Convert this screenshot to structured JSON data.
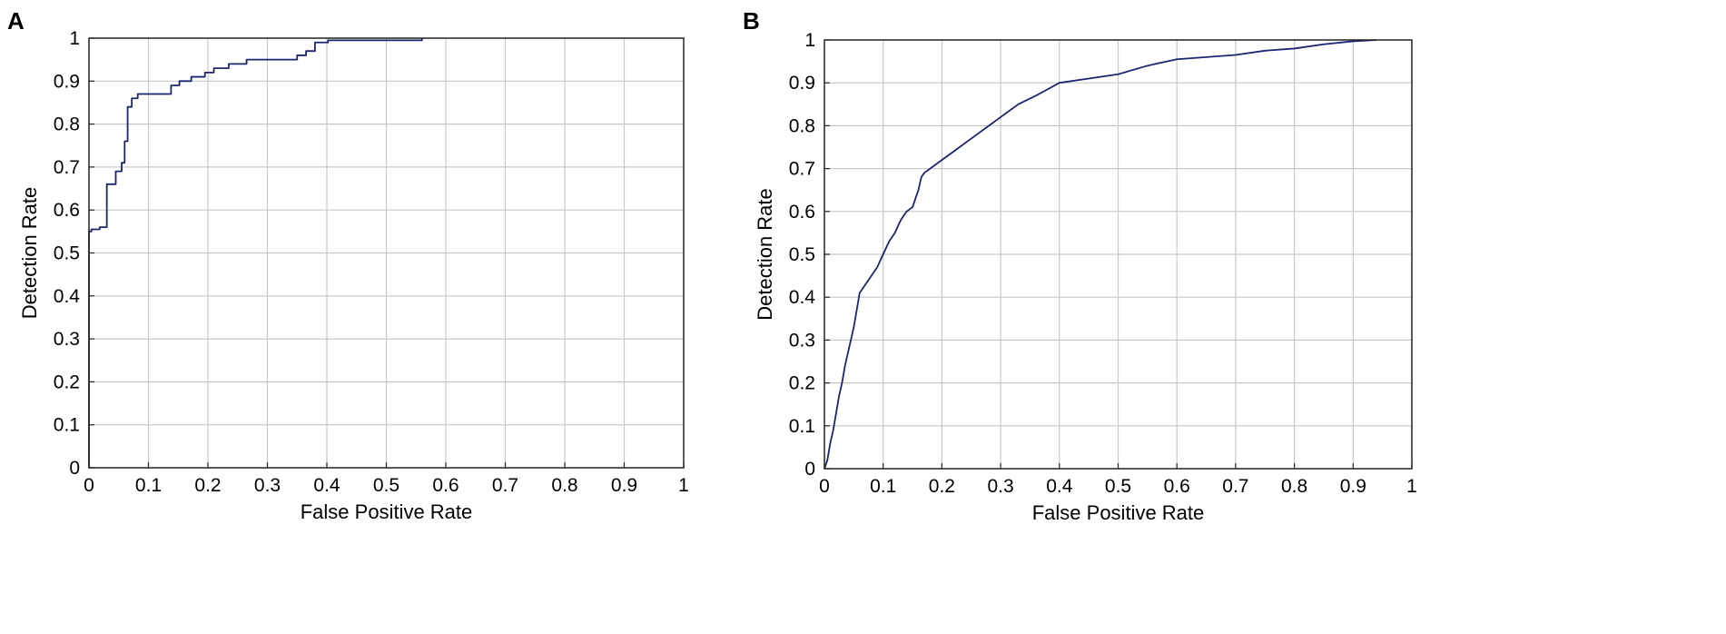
{
  "chart_data": [
    {
      "panel": "A",
      "type": "line",
      "step": true,
      "xlabel": "False Positive Rate",
      "ylabel": "Detection Rate",
      "xlim": [
        0,
        1
      ],
      "ylim": [
        0,
        1
      ],
      "xticks": [
        "0",
        "0.1",
        "0.2",
        "0.3",
        "0.4",
        "0.5",
        "0.6",
        "0.7",
        "0.8",
        "0.9",
        "1"
      ],
      "yticks": [
        "0",
        "0.1",
        "0.2",
        "0.3",
        "0.4",
        "0.5",
        "0.6",
        "0.7",
        "0.8",
        "0.9",
        "1"
      ],
      "grid": true,
      "line_color": "#1d2470",
      "series": [
        {
          "x": [
            0,
            0,
            0.004,
            0.004,
            0.018,
            0.018,
            0.03,
            0.03,
            0.045,
            0.045,
            0.055,
            0.055,
            0.06,
            0.06,
            0.065,
            0.065,
            0.072,
            0.072,
            0.082,
            0.082,
            0.138,
            0.138,
            0.152,
            0.152,
            0.172,
            0.172,
            0.195,
            0.195,
            0.21,
            0.21,
            0.235,
            0.235,
            0.265,
            0.265,
            0.35,
            0.35,
            0.365,
            0.365,
            0.38,
            0.38,
            0.402,
            0.402,
            0.56,
            0.56
          ],
          "y": [
            0,
            0.55,
            0.55,
            0.555,
            0.555,
            0.56,
            0.56,
            0.66,
            0.66,
            0.69,
            0.69,
            0.71,
            0.71,
            0.76,
            0.76,
            0.84,
            0.84,
            0.86,
            0.86,
            0.87,
            0.87,
            0.89,
            0.89,
            0.9,
            0.9,
            0.91,
            0.91,
            0.92,
            0.92,
            0.93,
            0.93,
            0.94,
            0.94,
            0.95,
            0.95,
            0.96,
            0.96,
            0.97,
            0.97,
            0.99,
            0.99,
            0.995,
            0.995,
            1.0
          ]
        }
      ]
    },
    {
      "panel": "B",
      "type": "line",
      "xlabel": "False Positive Rate",
      "ylabel": "Detection Rate",
      "xlim": [
        0,
        1
      ],
      "ylim": [
        0,
        1
      ],
      "xticks": [
        "0",
        "0.1",
        "0.2",
        "0.3",
        "0.4",
        "0.5",
        "0.6",
        "0.7",
        "0.8",
        "0.9",
        "1"
      ],
      "yticks": [
        "0",
        "0.1",
        "0.2",
        "0.3",
        "0.4",
        "0.5",
        "0.6",
        "0.7",
        "0.8",
        "0.9",
        "1"
      ],
      "grid": true,
      "line_color": "#1d2470",
      "series": [
        {
          "x": [
            0,
            0.005,
            0.01,
            0.015,
            0.02,
            0.025,
            0.03,
            0.035,
            0.04,
            0.045,
            0.05,
            0.055,
            0.06,
            0.065,
            0.07,
            0.08,
            0.09,
            0.1,
            0.11,
            0.12,
            0.13,
            0.14,
            0.15,
            0.16,
            0.165,
            0.17,
            0.18,
            0.19,
            0.2,
            0.22,
            0.25,
            0.28,
            0.3,
            0.33,
            0.36,
            0.4,
            0.45,
            0.5,
            0.55,
            0.6,
            0.65,
            0.7,
            0.75,
            0.8,
            0.85,
            0.9,
            0.94
          ],
          "y": [
            0,
            0.02,
            0.06,
            0.09,
            0.13,
            0.17,
            0.2,
            0.24,
            0.27,
            0.3,
            0.33,
            0.37,
            0.41,
            0.42,
            0.43,
            0.45,
            0.47,
            0.5,
            0.53,
            0.55,
            0.58,
            0.6,
            0.61,
            0.65,
            0.68,
            0.69,
            0.7,
            0.71,
            0.72,
            0.74,
            0.77,
            0.8,
            0.82,
            0.85,
            0.87,
            0.9,
            0.91,
            0.92,
            0.94,
            0.955,
            0.96,
            0.965,
            0.975,
            0.98,
            0.99,
            0.997,
            1.0
          ]
        }
      ]
    }
  ],
  "panels": {
    "a_letter": "A",
    "b_letter": "B"
  }
}
